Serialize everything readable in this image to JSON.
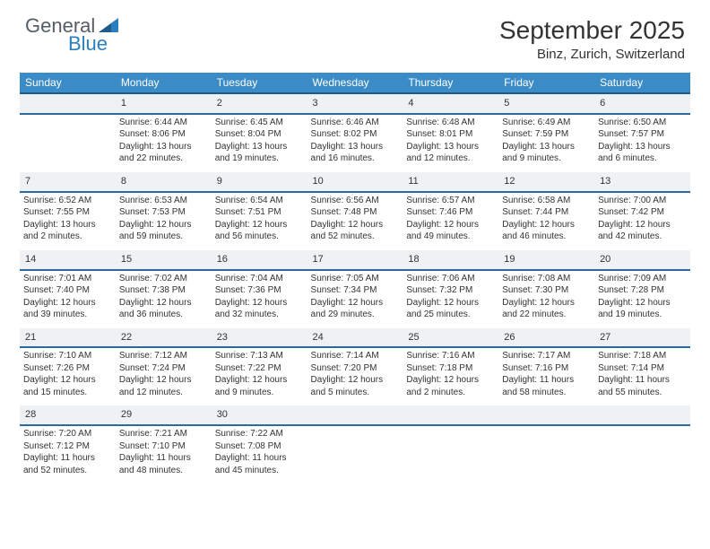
{
  "brand": {
    "name_a": "General",
    "name_b": "Blue"
  },
  "title": "September 2025",
  "location": "Binz, Zurich, Switzerland",
  "header_bg": "#3b8bc7",
  "header_border": "#1f5a8a",
  "daynum_bg": "#eef2f5",
  "daynum_border": "#2e6a9e",
  "weekdays": [
    "Sunday",
    "Monday",
    "Tuesday",
    "Wednesday",
    "Thursday",
    "Friday",
    "Saturday"
  ],
  "weeks": [
    {
      "nums": [
        "",
        "1",
        "2",
        "3",
        "4",
        "5",
        "6"
      ],
      "cells": [
        null,
        {
          "sunrise": "Sunrise: 6:44 AM",
          "sunset": "Sunset: 8:06 PM",
          "day": "Daylight: 13 hours and 22 minutes."
        },
        {
          "sunrise": "Sunrise: 6:45 AM",
          "sunset": "Sunset: 8:04 PM",
          "day": "Daylight: 13 hours and 19 minutes."
        },
        {
          "sunrise": "Sunrise: 6:46 AM",
          "sunset": "Sunset: 8:02 PM",
          "day": "Daylight: 13 hours and 16 minutes."
        },
        {
          "sunrise": "Sunrise: 6:48 AM",
          "sunset": "Sunset: 8:01 PM",
          "day": "Daylight: 13 hours and 12 minutes."
        },
        {
          "sunrise": "Sunrise: 6:49 AM",
          "sunset": "Sunset: 7:59 PM",
          "day": "Daylight: 13 hours and 9 minutes."
        },
        {
          "sunrise": "Sunrise: 6:50 AM",
          "sunset": "Sunset: 7:57 PM",
          "day": "Daylight: 13 hours and 6 minutes."
        }
      ]
    },
    {
      "nums": [
        "7",
        "8",
        "9",
        "10",
        "11",
        "12",
        "13"
      ],
      "cells": [
        {
          "sunrise": "Sunrise: 6:52 AM",
          "sunset": "Sunset: 7:55 PM",
          "day": "Daylight: 13 hours and 2 minutes."
        },
        {
          "sunrise": "Sunrise: 6:53 AM",
          "sunset": "Sunset: 7:53 PM",
          "day": "Daylight: 12 hours and 59 minutes."
        },
        {
          "sunrise": "Sunrise: 6:54 AM",
          "sunset": "Sunset: 7:51 PM",
          "day": "Daylight: 12 hours and 56 minutes."
        },
        {
          "sunrise": "Sunrise: 6:56 AM",
          "sunset": "Sunset: 7:48 PM",
          "day": "Daylight: 12 hours and 52 minutes."
        },
        {
          "sunrise": "Sunrise: 6:57 AM",
          "sunset": "Sunset: 7:46 PM",
          "day": "Daylight: 12 hours and 49 minutes."
        },
        {
          "sunrise": "Sunrise: 6:58 AM",
          "sunset": "Sunset: 7:44 PM",
          "day": "Daylight: 12 hours and 46 minutes."
        },
        {
          "sunrise": "Sunrise: 7:00 AM",
          "sunset": "Sunset: 7:42 PM",
          "day": "Daylight: 12 hours and 42 minutes."
        }
      ]
    },
    {
      "nums": [
        "14",
        "15",
        "16",
        "17",
        "18",
        "19",
        "20"
      ],
      "cells": [
        {
          "sunrise": "Sunrise: 7:01 AM",
          "sunset": "Sunset: 7:40 PM",
          "day": "Daylight: 12 hours and 39 minutes."
        },
        {
          "sunrise": "Sunrise: 7:02 AM",
          "sunset": "Sunset: 7:38 PM",
          "day": "Daylight: 12 hours and 36 minutes."
        },
        {
          "sunrise": "Sunrise: 7:04 AM",
          "sunset": "Sunset: 7:36 PM",
          "day": "Daylight: 12 hours and 32 minutes."
        },
        {
          "sunrise": "Sunrise: 7:05 AM",
          "sunset": "Sunset: 7:34 PM",
          "day": "Daylight: 12 hours and 29 minutes."
        },
        {
          "sunrise": "Sunrise: 7:06 AM",
          "sunset": "Sunset: 7:32 PM",
          "day": "Daylight: 12 hours and 25 minutes."
        },
        {
          "sunrise": "Sunrise: 7:08 AM",
          "sunset": "Sunset: 7:30 PM",
          "day": "Daylight: 12 hours and 22 minutes."
        },
        {
          "sunrise": "Sunrise: 7:09 AM",
          "sunset": "Sunset: 7:28 PM",
          "day": "Daylight: 12 hours and 19 minutes."
        }
      ]
    },
    {
      "nums": [
        "21",
        "22",
        "23",
        "24",
        "25",
        "26",
        "27"
      ],
      "cells": [
        {
          "sunrise": "Sunrise: 7:10 AM",
          "sunset": "Sunset: 7:26 PM",
          "day": "Daylight: 12 hours and 15 minutes."
        },
        {
          "sunrise": "Sunrise: 7:12 AM",
          "sunset": "Sunset: 7:24 PM",
          "day": "Daylight: 12 hours and 12 minutes."
        },
        {
          "sunrise": "Sunrise: 7:13 AM",
          "sunset": "Sunset: 7:22 PM",
          "day": "Daylight: 12 hours and 9 minutes."
        },
        {
          "sunrise": "Sunrise: 7:14 AM",
          "sunset": "Sunset: 7:20 PM",
          "day": "Daylight: 12 hours and 5 minutes."
        },
        {
          "sunrise": "Sunrise: 7:16 AM",
          "sunset": "Sunset: 7:18 PM",
          "day": "Daylight: 12 hours and 2 minutes."
        },
        {
          "sunrise": "Sunrise: 7:17 AM",
          "sunset": "Sunset: 7:16 PM",
          "day": "Daylight: 11 hours and 58 minutes."
        },
        {
          "sunrise": "Sunrise: 7:18 AM",
          "sunset": "Sunset: 7:14 PM",
          "day": "Daylight: 11 hours and 55 minutes."
        }
      ]
    },
    {
      "nums": [
        "28",
        "29",
        "30",
        "",
        "",
        "",
        ""
      ],
      "cells": [
        {
          "sunrise": "Sunrise: 7:20 AM",
          "sunset": "Sunset: 7:12 PM",
          "day": "Daylight: 11 hours and 52 minutes."
        },
        {
          "sunrise": "Sunrise: 7:21 AM",
          "sunset": "Sunset: 7:10 PM",
          "day": "Daylight: 11 hours and 48 minutes."
        },
        {
          "sunrise": "Sunrise: 7:22 AM",
          "sunset": "Sunset: 7:08 PM",
          "day": "Daylight: 11 hours and 45 minutes."
        },
        null,
        null,
        null,
        null
      ]
    }
  ]
}
